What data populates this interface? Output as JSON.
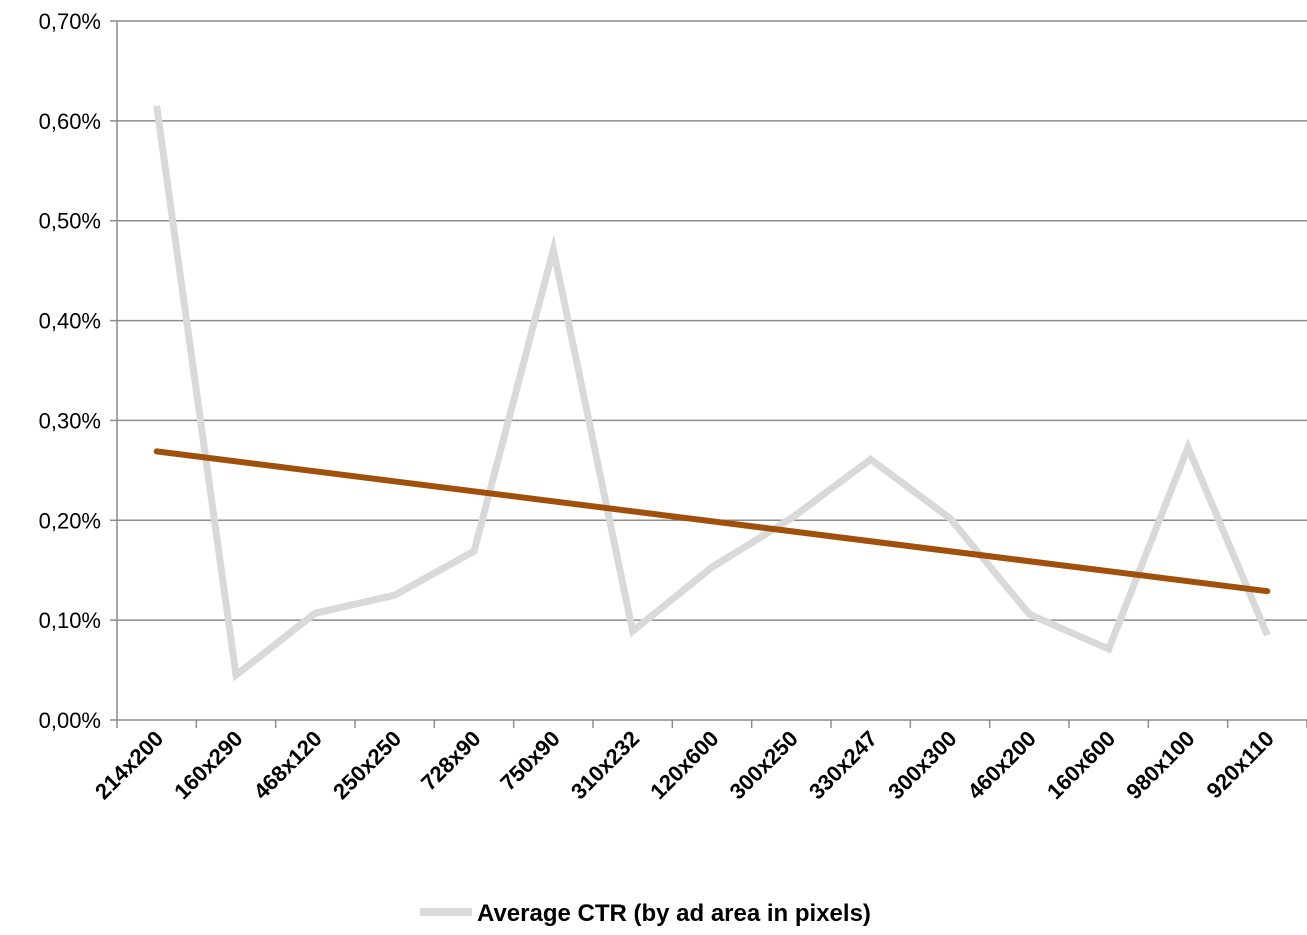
{
  "chart_data": {
    "type": "line",
    "categories": [
      "214x200",
      "160x290",
      "468x120",
      "250x250",
      "728x90",
      "750x90",
      "310x232",
      "120x600",
      "300x250",
      "330x247",
      "300x300",
      "460x200",
      "160x600",
      "980x100",
      "920x110"
    ],
    "series": [
      {
        "name": "Average CTR (by ad area in pixels)",
        "values": [
          0.615,
          0.045,
          0.107,
          0.125,
          0.169,
          0.471,
          0.089,
          0.153,
          0.202,
          0.261,
          0.202,
          0.106,
          0.071,
          0.273,
          0.085
        ]
      }
    ],
    "trendline": {
      "start": 0.269,
      "end": 0.129
    },
    "y_ticks": [
      "0,00%",
      "0,10%",
      "0,20%",
      "0,30%",
      "0,40%",
      "0,50%",
      "0,60%",
      "0,70%"
    ],
    "ylim": [
      0,
      0.7
    ],
    "grid": true,
    "legend_position": "bottom",
    "colors": {
      "series": "#d9d9d9",
      "trendline": "#a0500a",
      "grid": "#8c8c8c",
      "axis": "#8c8c8c"
    }
  }
}
